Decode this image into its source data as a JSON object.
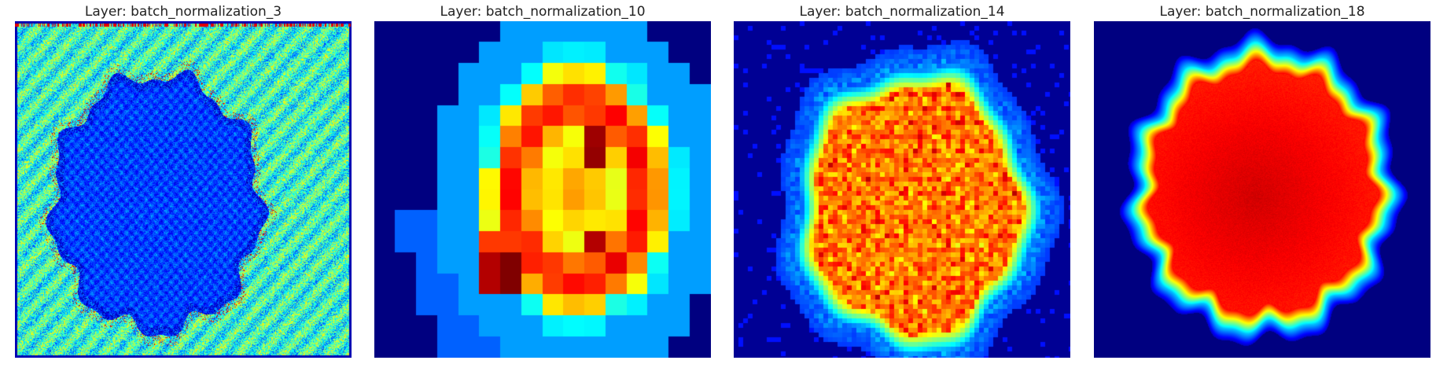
{
  "figure": {
    "panels": [
      {
        "title": "Layer: batch_normalization_3",
        "colormap": "jet",
        "pattern": "lesion-low-on-textured-background"
      },
      {
        "title": "Layer: batch_normalization_10",
        "colormap": "jet",
        "pattern": "coarse-grid-crescent"
      },
      {
        "title": "Layer: batch_normalization_14",
        "colormap": "jet",
        "pattern": "blob-yellow-grid"
      },
      {
        "title": "Layer: batch_normalization_18",
        "colormap": "jet",
        "pattern": "blob-smooth-red"
      }
    ],
    "colors": {
      "background": "#ffffff",
      "low": "#000080",
      "high": "#800000"
    }
  }
}
